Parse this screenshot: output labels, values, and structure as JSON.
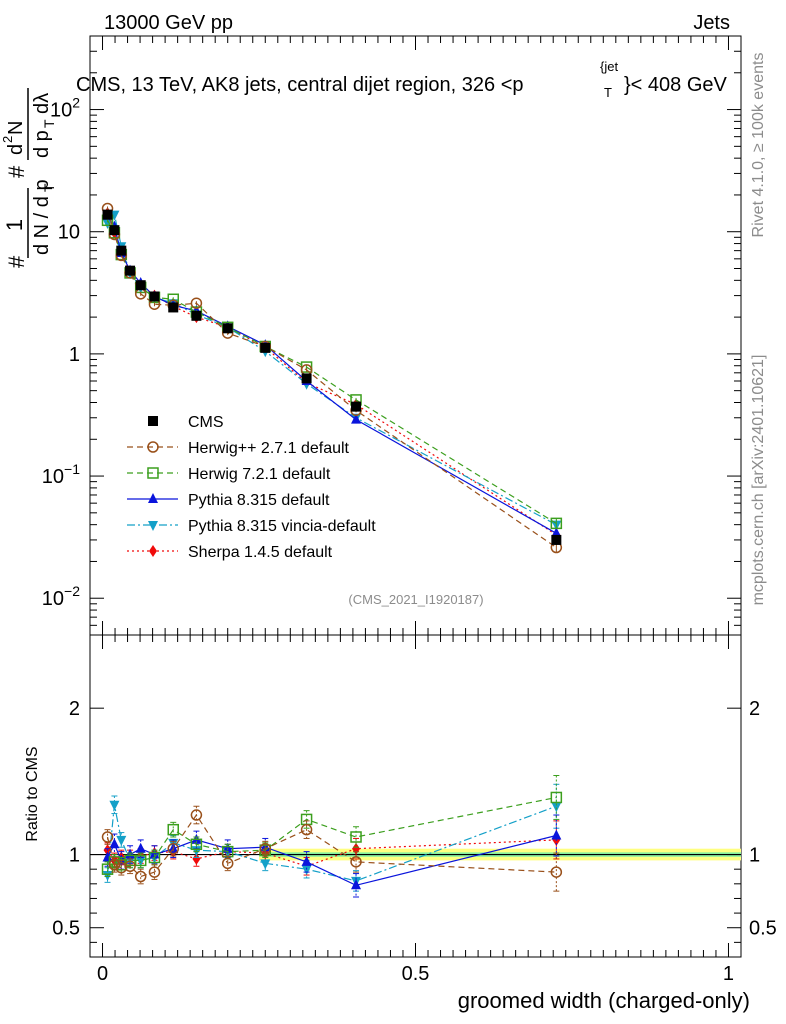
{
  "header": {
    "energy_label": "13000 GeV pp",
    "category_label": "Jets"
  },
  "side_text": {
    "rivet": "Rivet 4.1.0, ≥ 100k events",
    "mcplots": "mcplots.cern.ch [arXiv:2401.10621]"
  },
  "chart_data": [
    {
      "type": "line",
      "scale": "log",
      "title": "CMS, 13 TeV, AK8 jets, central dijet region, 326 <p_T^{jet}< 408 GeV",
      "title_parts": {
        "main": "CMS, 13 TeV, AK8 jets, central dijet region, 326 <p",
        "sub": "T",
        "sup": "{jet",
        "tail": "}< 408 GeV"
      },
      "ylabel": "1/(dN/dpT) d²N/(dpT dλ)",
      "ylabel_parts": {
        "hash": "#",
        "one": "1",
        "frac_den": "d N / d p",
        "T": "T",
        "num": "d",
        "sq": "2",
        "N": "N",
        "dpt": "d p",
        "dlam": "dλ"
      },
      "xlim": [
        -0.02,
        1.02
      ],
      "ylim": [
        0.005,
        400
      ],
      "yticks": [
        {
          "value": 0.01,
          "base": "10",
          "exp": "−2"
        },
        {
          "value": 0.1,
          "base": "10",
          "exp": "−1"
        },
        {
          "value": 1,
          "base": "1",
          "exp": ""
        },
        {
          "value": 10,
          "base": "10",
          "exp": ""
        },
        {
          "value": 100,
          "base": "10",
          "exp": "2"
        }
      ],
      "watermark": "(CMS_2021_I1920187)",
      "x": [
        0.008,
        0.019,
        0.03,
        0.044,
        0.061,
        0.083,
        0.113,
        0.15,
        0.2,
        0.26,
        0.326,
        0.405,
        0.725
      ],
      "series": [
        {
          "name": "CMS",
          "color": "#000000",
          "marker": "square-filled",
          "dash": "",
          "values": [
            13.8,
            10.3,
            7.0,
            4.8,
            3.65,
            2.95,
            2.4,
            2.05,
            1.62,
            1.12,
            0.63,
            0.37,
            0.03
          ]
        },
        {
          "name": "Herwig++ 2.7.1 default",
          "color": "#99501a",
          "marker": "circle-open",
          "dash": "6,4",
          "values": [
            15.5,
            9.5,
            6.4,
            4.6,
            3.1,
            2.55,
            2.5,
            2.6,
            1.48,
            1.15,
            0.74,
            0.345,
            0.026
          ]
        },
        {
          "name": "Herwig 7.2.1 default",
          "color": "#3c9f1e",
          "marker": "square-open",
          "dash": "6,4",
          "values": [
            12.4,
            9.8,
            6.5,
            4.6,
            3.5,
            2.9,
            2.8,
            2.2,
            1.65,
            1.15,
            0.78,
            0.42,
            0.041
          ]
        },
        {
          "name": "Pythia 8.315 default",
          "color": "#0a14dc",
          "marker": "triangle-up",
          "dash": "",
          "values": [
            13.5,
            11.0,
            6.7,
            4.8,
            3.8,
            2.95,
            2.5,
            2.25,
            1.68,
            1.18,
            0.6,
            0.29,
            0.034
          ]
        },
        {
          "name": "Pythia 8.315 vincia-default",
          "color": "#14a0c8",
          "marker": "triangle-down",
          "dash": "8,3,2,3",
          "values": [
            11.8,
            13.8,
            7.6,
            4.6,
            3.5,
            2.9,
            2.6,
            2.1,
            1.65,
            1.05,
            0.57,
            0.3,
            0.04
          ]
        },
        {
          "name": "Sherpa 1.4.5 default",
          "color": "#f00a0a",
          "marker": "diamond",
          "dash": "2,3",
          "values": [
            14.2,
            9.8,
            6.9,
            4.7,
            3.6,
            3.0,
            2.45,
            2.0,
            1.65,
            1.13,
            0.58,
            0.385,
            0.033
          ]
        }
      ]
    },
    {
      "type": "line",
      "ylabel": "Ratio to CMS",
      "xlabel": "groomed width (charged-only)",
      "xlim": [
        -0.02,
        1.02
      ],
      "ylim": [
        0.3,
        2.5
      ],
      "yticks": [
        0.5,
        1,
        2
      ],
      "xticks": [
        {
          "value": 0,
          "label": "0"
        },
        {
          "value": 0.5,
          "label": "0.5"
        },
        {
          "value": 1,
          "label": "1"
        }
      ],
      "x": [
        0.008,
        0.019,
        0.03,
        0.044,
        0.061,
        0.083,
        0.113,
        0.15,
        0.2,
        0.26,
        0.326,
        0.405,
        0.725
      ],
      "band": {
        "inner": [
          0.985,
          1.015
        ],
        "outer": [
          0.96,
          1.04
        ],
        "inner_color": "#84f0a0",
        "outer_color": "#ffff80"
      },
      "series": [
        {
          "name": "Herwig++ 2.7.1 default",
          "color": "#99501a",
          "marker": "circle-open",
          "dash": "6,4",
          "values": [
            1.12,
            0.93,
            0.91,
            0.92,
            0.85,
            0.88,
            1.04,
            1.27,
            0.94,
            1.04,
            1.17,
            0.95,
            0.88
          ],
          "errors": [
            0.05,
            0.05,
            0.05,
            0.05,
            0.05,
            0.05,
            0.05,
            0.06,
            0.05,
            0.05,
            0.06,
            0.07,
            0.13
          ]
        },
        {
          "name": "Herwig 7.2.1 default",
          "color": "#3c9f1e",
          "marker": "square-open",
          "dash": "6,4",
          "values": [
            0.9,
            0.95,
            0.93,
            0.96,
            0.96,
            0.98,
            1.17,
            1.07,
            1.02,
            1.03,
            1.24,
            1.12,
            1.39
          ],
          "errors": [
            0.05,
            0.05,
            0.05,
            0.05,
            0.05,
            0.05,
            0.05,
            0.05,
            0.05,
            0.05,
            0.06,
            0.07,
            0.15
          ]
        },
        {
          "name": "Pythia 8.315 default",
          "color": "#0a14dc",
          "marker": "triangle-up",
          "dash": "",
          "values": [
            0.98,
            1.07,
            0.96,
            1.0,
            1.04,
            1.0,
            1.04,
            1.1,
            1.04,
            1.05,
            0.95,
            0.79,
            1.13
          ],
          "errors": [
            0.06,
            0.07,
            0.06,
            0.06,
            0.06,
            0.06,
            0.06,
            0.06,
            0.06,
            0.06,
            0.07,
            0.08,
            0.14
          ]
        },
        {
          "name": "Pythia 8.315 vincia-default",
          "color": "#14a0c8",
          "marker": "triangle-down",
          "dash": "8,3,2,3",
          "values": [
            0.86,
            1.34,
            1.1,
            0.96,
            0.96,
            0.98,
            1.08,
            1.03,
            1.02,
            0.94,
            0.9,
            0.82,
            1.33
          ],
          "errors": [
            0.05,
            0.06,
            0.05,
            0.05,
            0.05,
            0.05,
            0.05,
            0.05,
            0.05,
            0.05,
            0.06,
            0.07,
            0.15
          ]
        },
        {
          "name": "Sherpa 1.4.5 default",
          "color": "#f00a0a",
          "marker": "diamond",
          "dash": "2,3",
          "values": [
            1.03,
            0.96,
            0.98,
            0.98,
            0.99,
            1.01,
            1.02,
            0.97,
            1.02,
            1.01,
            0.92,
            1.04,
            1.1
          ],
          "errors": [
            0.05,
            0.05,
            0.05,
            0.05,
            0.05,
            0.05,
            0.05,
            0.05,
            0.05,
            0.05,
            0.06,
            0.07,
            0.13
          ]
        }
      ]
    }
  ]
}
